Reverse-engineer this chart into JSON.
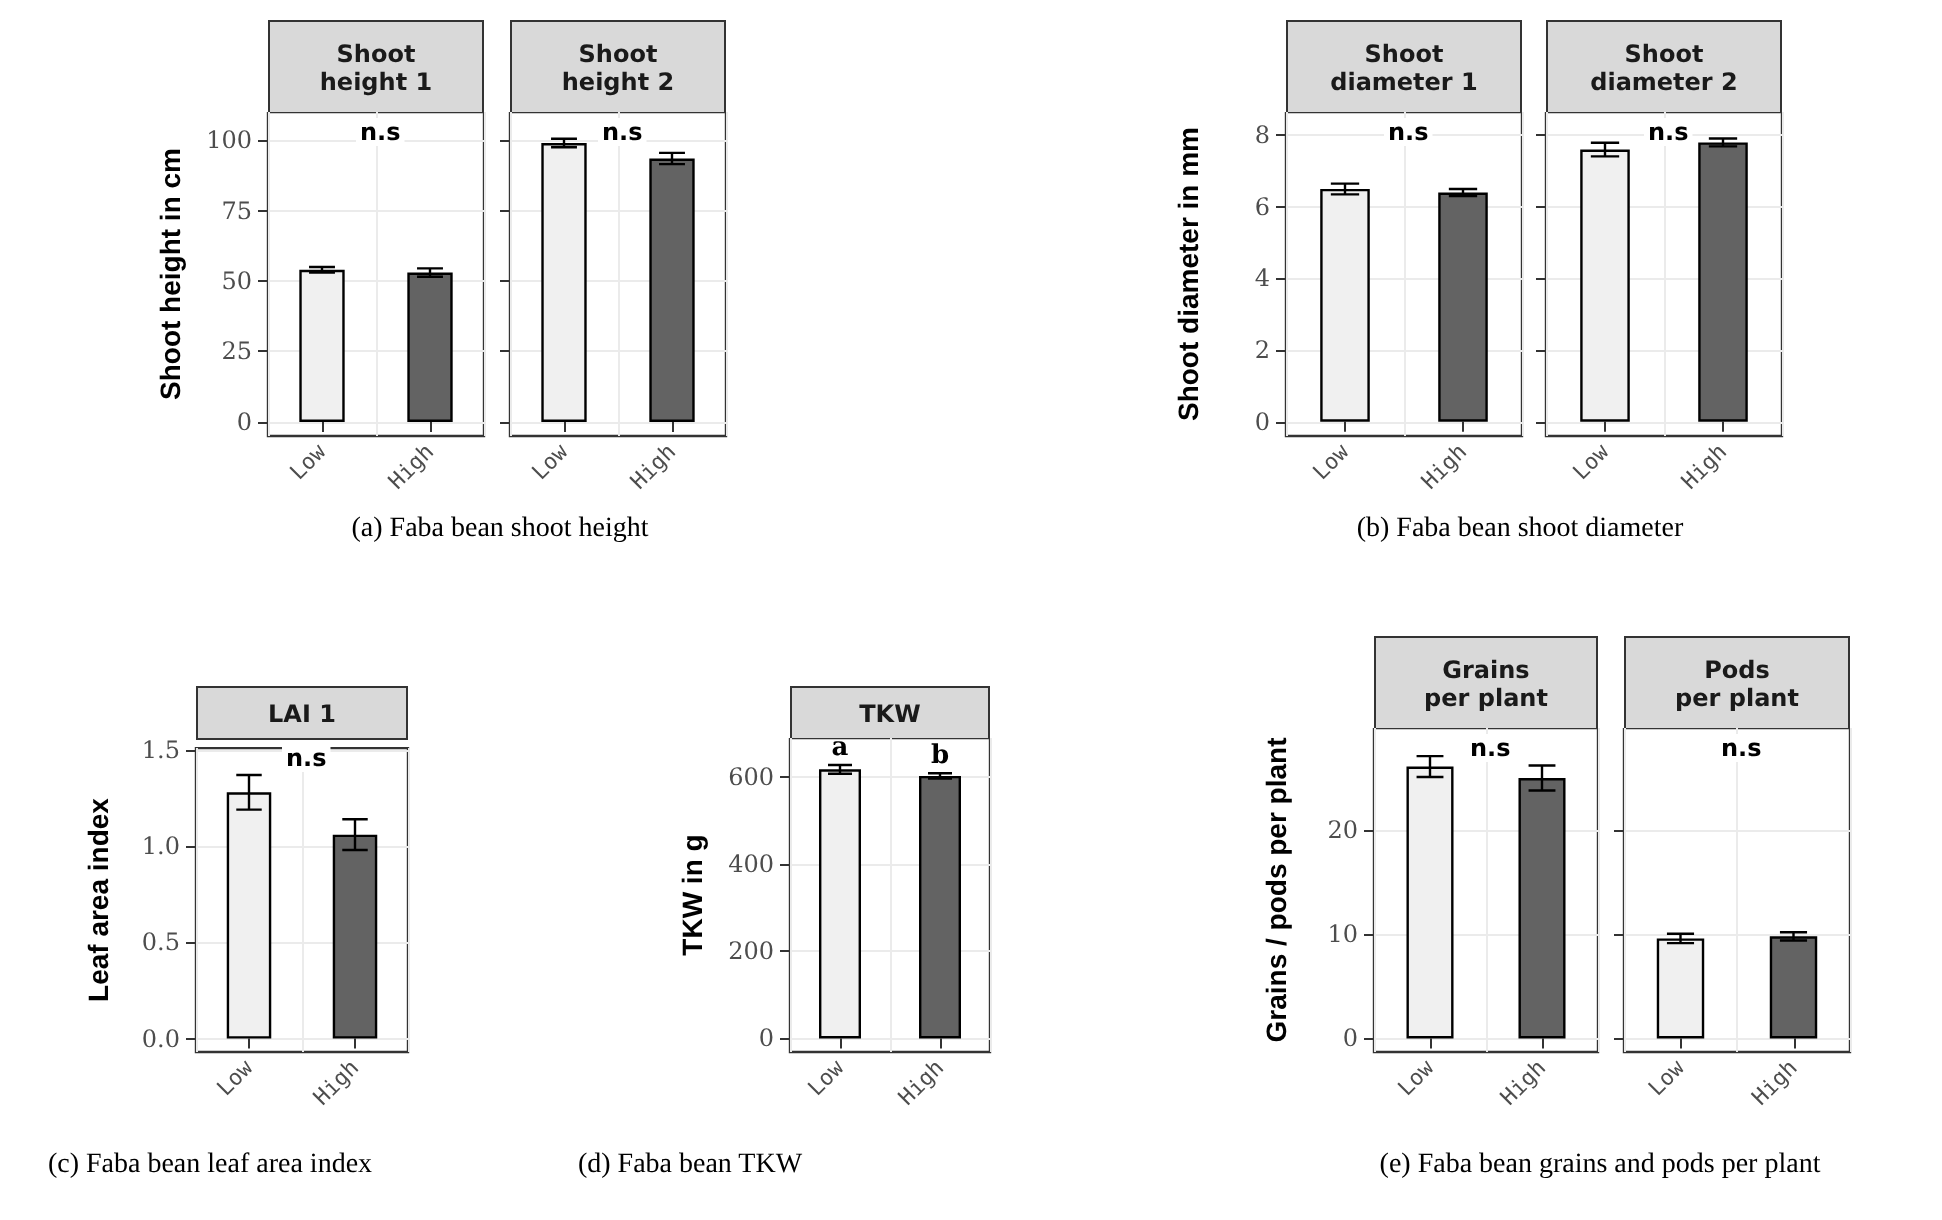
{
  "chart_data": [
    {
      "type": "bar",
      "title": "Shoot\nheight 1",
      "ylabel": "Shoot height in cm",
      "categories": [
        "Low",
        "High"
      ],
      "values": [
        54,
        53
      ],
      "colors": [
        "#f0f0f0",
        "#636363"
      ],
      "errors": [
        1,
        1.5
      ],
      "ylim": [
        -5,
        110
      ],
      "yticks": [
        0,
        25,
        50,
        75,
        100
      ],
      "grid": true,
      "annotations": [
        "n.s"
      ]
    },
    {
      "type": "bar",
      "title": "Shoot\nheight 2",
      "categories": [
        "Low",
        "High"
      ],
      "values": [
        99,
        93.5
      ],
      "colors": [
        "#f0f0f0",
        "#636363"
      ],
      "errors": [
        1.5,
        2
      ],
      "ylim": [
        -5,
        110
      ],
      "yticks": [
        0,
        25,
        50,
        75,
        100
      ],
      "tick_labels": "x",
      "grid": true,
      "annotations": [
        "n.s",
        "(a) Faba bean shoot height"
      ]
    },
    {
      "type": "bar",
      "title": "Shoot\ndiameter 1",
      "ylabel": "Shoot diameter in mm",
      "categories": [
        "Low",
        "High"
      ],
      "values": [
        6.5,
        6.4
      ],
      "colors": [
        "#f0f0f0",
        "#636363"
      ],
      "errors": [
        0.15,
        0.1
      ],
      "ylim": [
        -0.4,
        8.65
      ],
      "yticks": [
        0,
        2,
        4,
        6,
        8
      ],
      "grid": true,
      "annotations": [
        "n.s"
      ]
    },
    {
      "type": "bar",
      "title": "Shoot\ndiameter 2",
      "categories": [
        "Low",
        "High"
      ],
      "values": [
        7.6,
        7.8
      ],
      "colors": [
        "#f0f0f0",
        "#636363"
      ],
      "errors": [
        0.19,
        0.11
      ],
      "ylim": [
        -0.4,
        8.65
      ],
      "yticks": [
        0,
        2,
        4,
        6,
        8
      ],
      "tick_labels": "x",
      "grid": true,
      "annotations": [
        "n.s",
        "(b) Faba bean shoot diameter"
      ]
    },
    {
      "type": "bar",
      "title": "LAI 1",
      "ylabel": "Leaf area index",
      "categories": [
        "Low",
        "High"
      ],
      "values": [
        1.28,
        1.06
      ],
      "colors": [
        "#f0f0f0",
        "#636363"
      ],
      "errors": [
        0.09,
        0.08
      ],
      "ylim": [
        -0.07,
        1.51
      ],
      "yticks": [
        {
          "value": 0,
          "label": "0.0"
        },
        {
          "value": 0.5,
          "label": "0.5"
        },
        {
          "value": 1,
          "label": "1.0"
        },
        {
          "value": 1.5,
          "label": "1.5"
        }
      ],
      "grid": true,
      "annotations": [
        "n.s",
        "(c) Faba bean leaf area index"
      ]
    },
    {
      "type": "bar",
      "title": "TKW",
      "ylabel": "TKW in g",
      "categories": [
        "Low",
        "High"
      ],
      "values": [
        618,
        603
      ],
      "colors": [
        "#f0f0f0",
        "#636363"
      ],
      "errors": [
        10,
        6
      ],
      "ylim": [
        -31,
        690
      ],
      "yticks": [
        0,
        200,
        400,
        600
      ],
      "grid": true,
      "annotations": [
        {
          "text": "a",
          "x": "Low",
          "y": 628
        },
        {
          "text": "b",
          "x": "High",
          "y": 609
        },
        "(d) Faba bean TKW"
      ]
    },
    {
      "type": "bar",
      "title": "Grains\nper plant",
      "ylabel": "Grains / pods per plant",
      "categories": [
        "Low",
        "High"
      ],
      "values": [
        26.1,
        25.0
      ],
      "colors": [
        "#f0f0f0",
        "#636363"
      ],
      "errors": [
        1.0,
        1.2
      ],
      "ylim": [
        -1.3,
        29.8
      ],
      "yticks": [
        0,
        10,
        20
      ],
      "grid": true,
      "annotations": [
        "n.s"
      ]
    },
    {
      "type": "bar",
      "title": "Pods\nper plant",
      "categories": [
        "Low",
        "High"
      ],
      "values": [
        9.6,
        9.8
      ],
      "colors": [
        "#f0f0f0",
        "#636363"
      ],
      "errors": [
        0.45,
        0.4
      ],
      "ylim": [
        -1.3,
        29.8
      ],
      "yticks": [
        0,
        10,
        20
      ],
      "tick_labels": "x",
      "grid": true,
      "annotations": [
        "n.s",
        "(e) Faba bean grains and pods per plant"
      ]
    }
  ]
}
